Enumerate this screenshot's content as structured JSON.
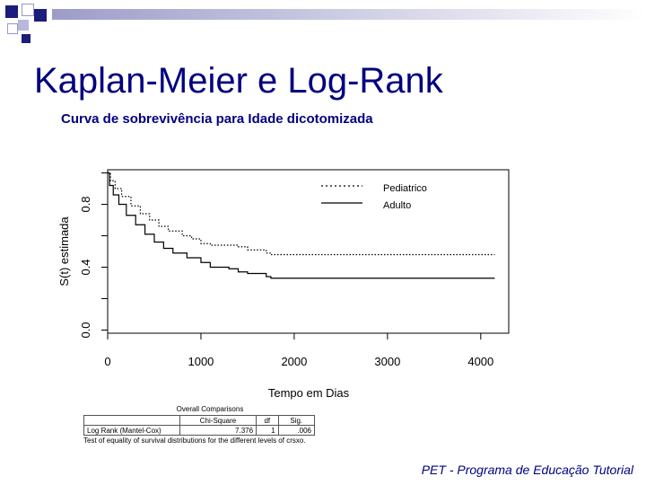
{
  "slide": {
    "title": "Kaplan-Meier e Log-Rank",
    "subtitle": "Curva de sobrevivência para Idade dicotomizada",
    "footer": "PET - Programa de Educação Tutorial",
    "accent_color": "#000080",
    "decoration_color": "#1c1c7a"
  },
  "chart_data": {
    "type": "line",
    "title": "",
    "xlabel": "Tempo em Dias",
    "ylabel": "S(t) estimada",
    "xlim": [
      0,
      4300
    ],
    "ylim": [
      -0.02,
      1.02
    ],
    "x_ticks": [
      0,
      1000,
      2000,
      3000,
      4000
    ],
    "x_tick_labels": [
      "0",
      "1000",
      "2000",
      "3000",
      "4000"
    ],
    "y_ticks": [
      0.0,
      0.2,
      0.4,
      0.6,
      0.8,
      1.0
    ],
    "y_tick_labels": [
      "0.0",
      "0.4",
      "0.8"
    ],
    "y_tick_label_values": [
      0.0,
      0.4,
      0.8
    ],
    "grid": false,
    "legend_position": "top-right",
    "series": [
      {
        "name": "Pediatrico",
        "style": "dotted",
        "points": [
          [
            0,
            1.0
          ],
          [
            30,
            0.95
          ],
          [
            80,
            0.9
          ],
          [
            150,
            0.85
          ],
          [
            250,
            0.79
          ],
          [
            350,
            0.74
          ],
          [
            450,
            0.7
          ],
          [
            550,
            0.66
          ],
          [
            650,
            0.63
          ],
          [
            800,
            0.6
          ],
          [
            900,
            0.58
          ],
          [
            1000,
            0.55
          ],
          [
            1100,
            0.54
          ],
          [
            1400,
            0.53
          ],
          [
            1500,
            0.51
          ],
          [
            1700,
            0.49
          ],
          [
            1750,
            0.48
          ],
          [
            4150,
            0.48
          ]
        ]
      },
      {
        "name": "Adulto",
        "style": "solid",
        "points": [
          [
            0,
            1.0
          ],
          [
            20,
            0.92
          ],
          [
            60,
            0.86
          ],
          [
            120,
            0.8
          ],
          [
            200,
            0.73
          ],
          [
            300,
            0.67
          ],
          [
            400,
            0.61
          ],
          [
            500,
            0.56
          ],
          [
            600,
            0.52
          ],
          [
            700,
            0.49
          ],
          [
            850,
            0.46
          ],
          [
            1000,
            0.43
          ],
          [
            1100,
            0.4
          ],
          [
            1300,
            0.39
          ],
          [
            1400,
            0.37
          ],
          [
            1500,
            0.36
          ],
          [
            1700,
            0.34
          ],
          [
            1750,
            0.33
          ],
          [
            4150,
            0.33
          ]
        ]
      }
    ]
  },
  "stats": {
    "title": "Overall Comparisons",
    "headers": [
      "",
      "Chi-Square",
      "df",
      "Sig."
    ],
    "row": [
      "Log Rank (Mantel-Cox)",
      "7.376",
      "1",
      ".006"
    ],
    "footnote": "Test of equality of survival distributions for the different levels of crsxo."
  }
}
